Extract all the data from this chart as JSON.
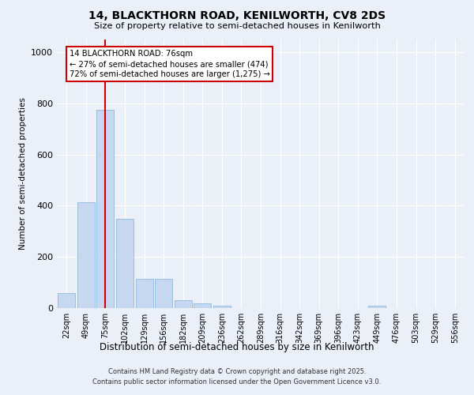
{
  "title": "14, BLACKTHORN ROAD, KENILWORTH, CV8 2DS",
  "subtitle": "Size of property relative to semi-detached houses in Kenilworth",
  "xlabel": "Distribution of semi-detached houses by size in Kenilworth",
  "ylabel": "Number of semi-detached properties",
  "categories": [
    "22sqm",
    "49sqm",
    "75sqm",
    "102sqm",
    "129sqm",
    "156sqm",
    "182sqm",
    "209sqm",
    "236sqm",
    "262sqm",
    "289sqm",
    "316sqm",
    "342sqm",
    "369sqm",
    "396sqm",
    "423sqm",
    "449sqm",
    "476sqm",
    "503sqm",
    "529sqm",
    "556sqm"
  ],
  "values": [
    60,
    415,
    775,
    350,
    115,
    115,
    30,
    18,
    8,
    0,
    0,
    0,
    0,
    0,
    0,
    0,
    10,
    0,
    0,
    0,
    0
  ],
  "bar_color": "#c5d8f0",
  "bar_edge_color": "#8fb8dc",
  "vline_index": 2,
  "vline_color": "#cc0000",
  "annotation_text": "14 BLACKTHORN ROAD: 76sqm\n← 27% of semi-detached houses are smaller (474)\n72% of semi-detached houses are larger (1,275) →",
  "annotation_box_color": "#ffffff",
  "annotation_box_edge": "#cc0000",
  "ylim": [
    0,
    1050
  ],
  "yticks": [
    0,
    200,
    400,
    600,
    800,
    1000
  ],
  "background_color": "#eaeff8",
  "grid_color": "#ffffff",
  "footer": "Contains HM Land Registry data © Crown copyright and database right 2025.\nContains public sector information licensed under the Open Government Licence v3.0."
}
